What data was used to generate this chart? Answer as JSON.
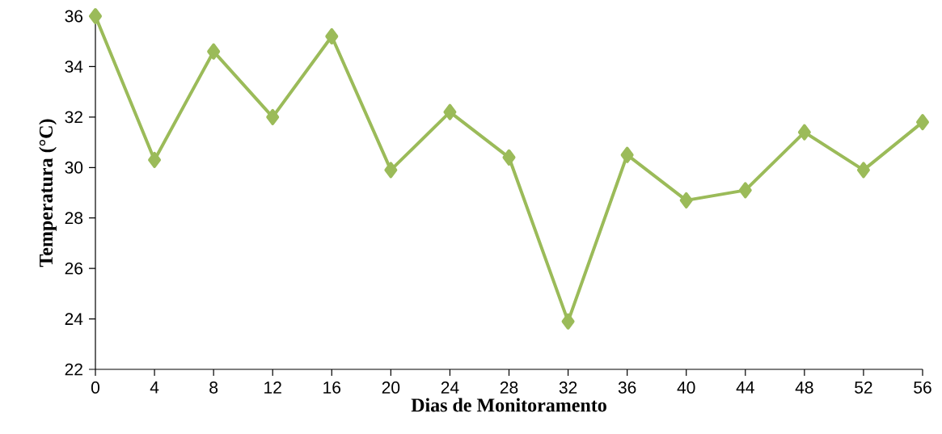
{
  "chart_data": {
    "type": "line",
    "xlabel": "Dias de Monitoramento",
    "ylabel": "Temperatura (°C)",
    "x": [
      0,
      4,
      8,
      12,
      16,
      20,
      24,
      28,
      32,
      36,
      40,
      44,
      48,
      52,
      56
    ],
    "series": [
      {
        "color": "#9bbb59",
        "values": [
          36.0,
          30.3,
          34.6,
          32.0,
          35.2,
          29.9,
          32.2,
          30.4,
          23.9,
          30.5,
          28.7,
          29.1,
          31.4,
          29.9,
          31.8
        ]
      }
    ],
    "xlim": [
      0,
      56
    ],
    "ylim": [
      22,
      36
    ],
    "xticks": [
      0,
      4,
      8,
      12,
      16,
      20,
      24,
      28,
      32,
      36,
      40,
      44,
      48,
      52,
      56
    ],
    "yticks": [
      22,
      24,
      26,
      28,
      30,
      32,
      34,
      36
    ],
    "grid": false,
    "marker": "diamond",
    "line_style": "solid"
  }
}
